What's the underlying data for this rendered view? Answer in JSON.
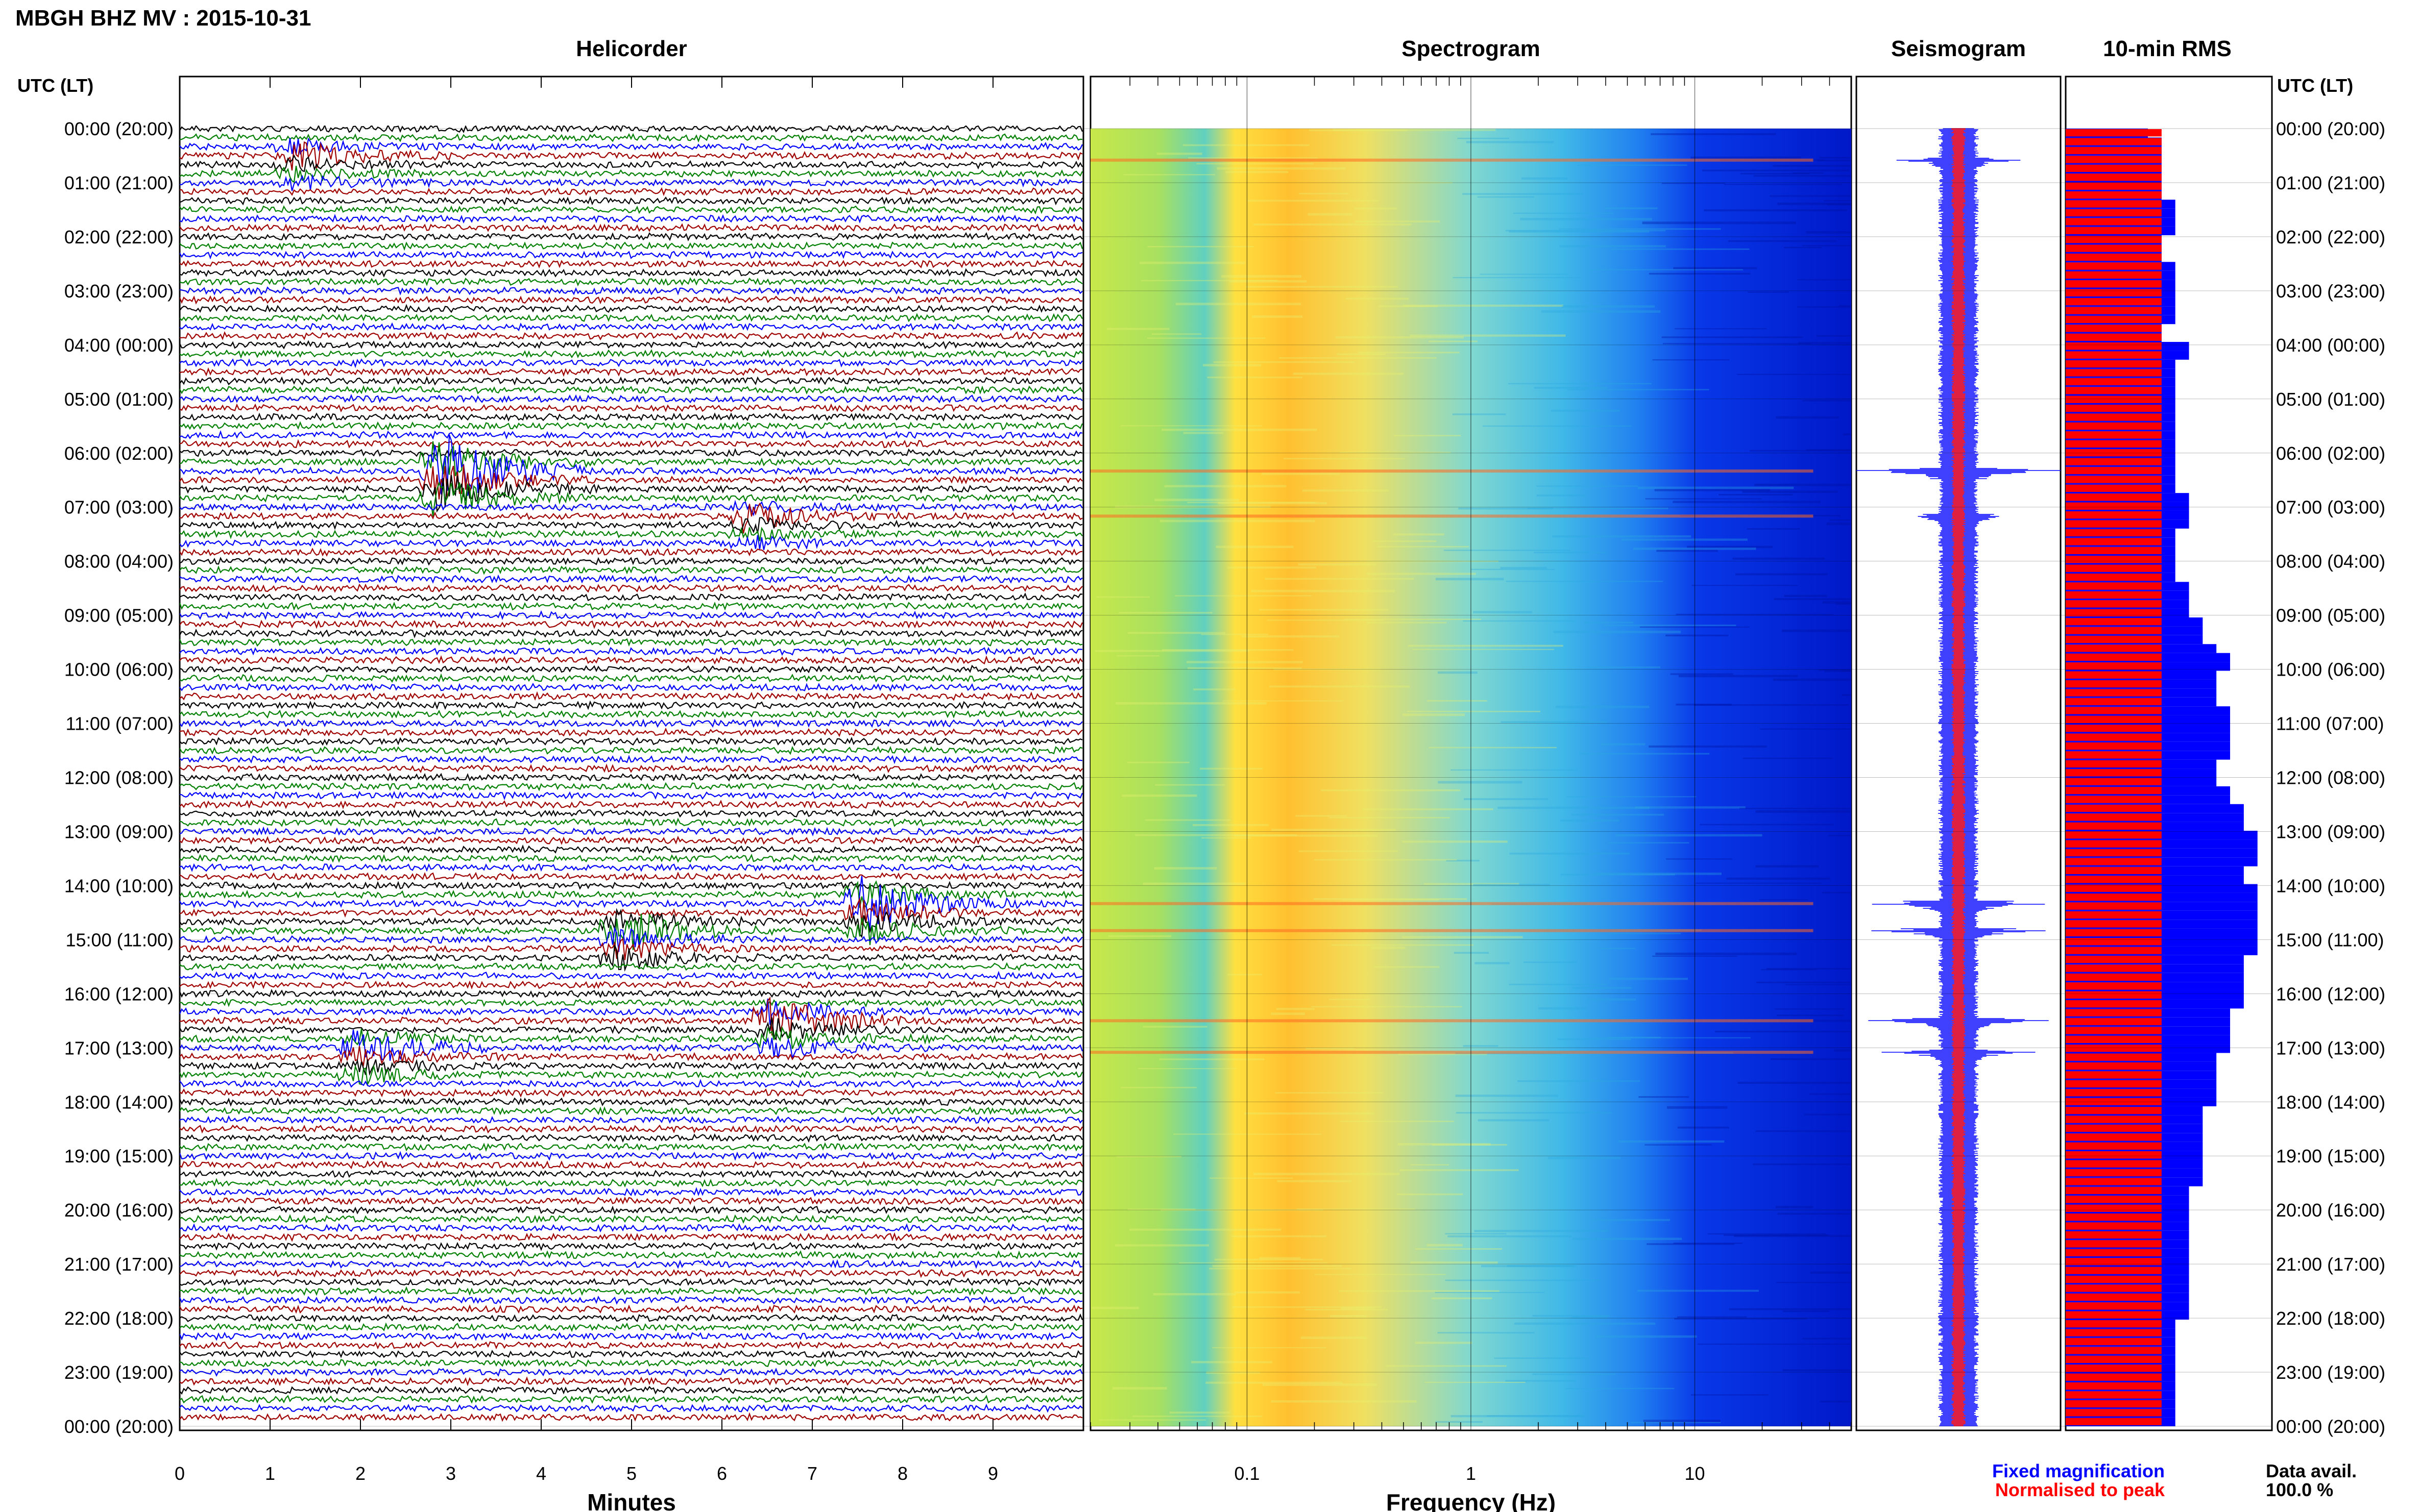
{
  "header": {
    "station": "MBGH BHZ MV : 2015-10-31",
    "panels": [
      "Helicorder",
      "Spectrogram",
      "Seismogram",
      "10-min RMS"
    ]
  },
  "axis": {
    "time_label_left": "UTC (LT)",
    "time_label_right": "UTC (LT)",
    "hour_labels": [
      "00:00 (20:00)",
      "01:00 (21:00)",
      "02:00 (22:00)",
      "03:00 (23:00)",
      "04:00 (00:00)",
      "05:00 (01:00)",
      "06:00 (02:00)",
      "07:00 (03:00)",
      "08:00 (04:00)",
      "09:00 (05:00)",
      "10:00 (06:00)",
      "11:00 (07:00)",
      "12:00 (08:00)",
      "13:00 (09:00)",
      "14:00 (10:00)",
      "15:00 (11:00)",
      "16:00 (12:00)",
      "17:00 (13:00)",
      "18:00 (14:00)",
      "19:00 (15:00)",
      "20:00 (16:00)",
      "21:00 (17:00)",
      "22:00 (18:00)",
      "23:00 (19:00)",
      "00:00 (20:00)"
    ],
    "minutes_label": "Minutes",
    "minute_ticks": [
      "0",
      "1",
      "2",
      "3",
      "4",
      "5",
      "6",
      "7",
      "8",
      "9"
    ],
    "frequency_label": "Frequency (Hz)",
    "frequency_ticks": [
      "0.1",
      "1",
      "10"
    ]
  },
  "legend": {
    "fixed": "Fixed magnification",
    "normalised": "Normalised to peak",
    "data_avail_label": "Data avail.",
    "data_avail_value": "100.0 %"
  },
  "colors": {
    "trace_cycle": [
      "#000000",
      "#008000",
      "#0000ff",
      "#a00000"
    ],
    "fixed": "#0000ff",
    "normalised": "#ff0000"
  },
  "chart_data": {
    "type": "heatmap",
    "panels": [
      "helicorder",
      "spectrogram",
      "seismogram",
      "rms"
    ],
    "time_range_utc": [
      "00:00",
      "24:00"
    ],
    "minutes_range": [
      0,
      10
    ],
    "frequency_range_hz": [
      0.02,
      50
    ],
    "frequency_scale": "log",
    "events": [
      {
        "utc": "00:35",
        "minute": 1.2,
        "amp": 3
      },
      {
        "utc": "06:20",
        "minute": 2.8,
        "amp": 9
      },
      {
        "utc": "07:10",
        "minute": 6.2,
        "amp": 3
      },
      {
        "utc": "14:20",
        "minute": 7.5,
        "amp": 6
      },
      {
        "utc": "14:50",
        "minute": 4.8,
        "amp": 5
      },
      {
        "utc": "16:30",
        "minute": 6.5,
        "amp": 5
      },
      {
        "utc": "17:05",
        "minute": 1.9,
        "amp": 4
      }
    ],
    "rms_fixed": [
      6,
      7,
      7,
      7,
      7,
      7,
      7,
      7,
      8,
      8,
      8,
      8,
      7,
      7,
      7,
      8,
      8,
      8,
      8,
      8,
      8,
      8,
      7,
      7,
      9,
      9,
      8,
      8,
      8,
      8,
      8,
      8,
      8,
      8,
      8,
      8,
      8,
      8,
      8,
      8,
      8,
      9,
      9,
      9,
      9,
      8,
      8,
      8,
      8,
      8,
      8,
      9,
      9,
      9,
      9,
      10,
      10,
      10,
      11,
      12,
      12,
      11,
      11,
      11,
      11,
      12,
      12,
      12,
      12,
      12,
      12,
      11,
      11,
      11,
      12,
      12,
      13,
      13,
      13,
      14,
      14,
      14,
      14,
      13,
      13,
      14,
      14,
      14,
      14,
      14,
      14,
      14,
      14,
      13,
      13,
      13,
      13,
      13,
      13,
      12,
      12,
      12,
      12,
      12,
      11,
      11,
      11,
      11,
      11,
      11,
      10,
      10,
      10,
      10,
      10,
      10,
      10,
      10,
      10,
      9,
      9,
      9,
      9,
      9,
      9,
      9,
      9,
      9,
      9,
      9,
      9,
      9,
      9,
      9,
      8,
      8,
      8,
      8,
      8,
      8,
      8,
      8,
      8,
      8,
      8,
      8
    ],
    "rms_norm": [
      2,
      2,
      2,
      2,
      2,
      2,
      2,
      2,
      2,
      2,
      2,
      2,
      2,
      2,
      2,
      2,
      2,
      2,
      2,
      2,
      2,
      2,
      2,
      2,
      2,
      2,
      2,
      2,
      2,
      2,
      2,
      2,
      2,
      2,
      2,
      2,
      2,
      2,
      2,
      2,
      2,
      2,
      2,
      2,
      2,
      2,
      2,
      2,
      2,
      2,
      2,
      2,
      2,
      2,
      2,
      2,
      2,
      2,
      2,
      2,
      2,
      2,
      2,
      2,
      2,
      2,
      2,
      2,
      2,
      2,
      2,
      2,
      2,
      2,
      2,
      2,
      2,
      2,
      2,
      2,
      2,
      2,
      2,
      2,
      2,
      2,
      2,
      2,
      2,
      2,
      2,
      2,
      2,
      2,
      2,
      2,
      2,
      2,
      2,
      2,
      2,
      2,
      2,
      2,
      2,
      2,
      2,
      2,
      2,
      2,
      2,
      2,
      2,
      2,
      2,
      2,
      2,
      2,
      2,
      2,
      2,
      2,
      2,
      2,
      2,
      2,
      2,
      2,
      2,
      2,
      2,
      2,
      2,
      2,
      2,
      2,
      2,
      2,
      2,
      2,
      2,
      2,
      2,
      2,
      2,
      2
    ]
  }
}
